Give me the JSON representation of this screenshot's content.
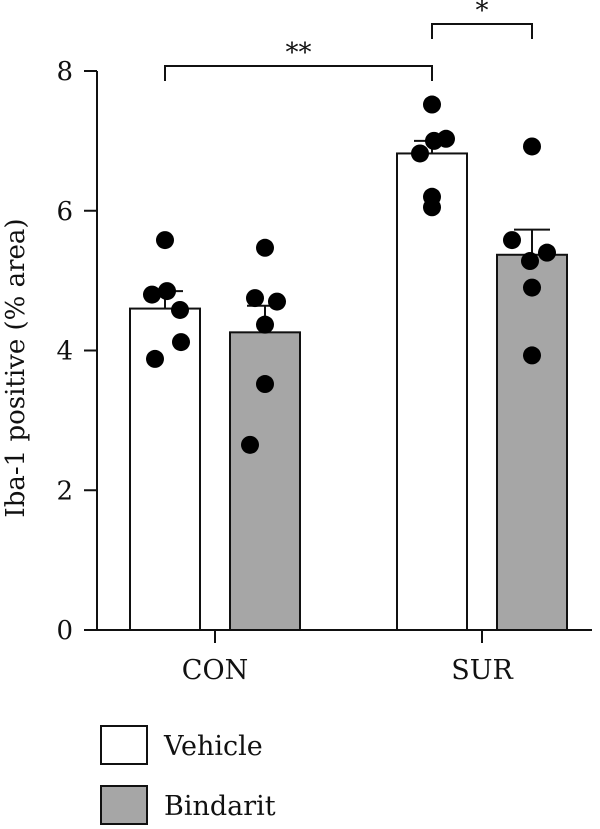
{
  "chart_data": {
    "type": "bar",
    "title": "",
    "xlabel": "",
    "ylabel": "Iba-1 positive (% area)",
    "ylim": [
      0,
      8
    ],
    "yticks": [
      0,
      2,
      4,
      6,
      8
    ],
    "grid": false,
    "legend_position": "bottom-left",
    "categories": [
      "CON",
      "SUR"
    ],
    "series": [
      {
        "name": "Vehicle",
        "color": "#ffffff",
        "values": [
          4.6,
          6.82
        ],
        "errors": [
          0.25,
          0.18
        ],
        "points": [
          [
            5.58,
            4.8,
            4.85,
            4.58,
            4.12,
            3.88
          ],
          [
            7.52,
            7.0,
            7.03,
            6.82,
            6.2,
            6.05
          ]
        ]
      },
      {
        "name": "Bindarit",
        "color": "#a6a6a6",
        "values": [
          4.26,
          5.37
        ],
        "errors": [
          0.38,
          0.36
        ],
        "points": [
          [
            5.47,
            4.75,
            4.7,
            4.37,
            3.52,
            2.65
          ],
          [
            6.92,
            5.58,
            5.4,
            5.28,
            4.9,
            3.93
          ]
        ]
      }
    ],
    "annotations": [
      {
        "label": "**",
        "from": [
          0,
          0
        ],
        "to": [
          1,
          0
        ]
      },
      {
        "label": "*",
        "from": [
          1,
          0
        ],
        "to": [
          1,
          1
        ]
      }
    ]
  }
}
